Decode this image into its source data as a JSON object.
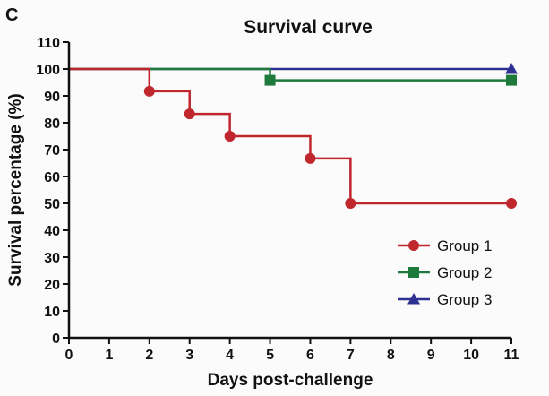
{
  "panel_label": "C",
  "chart_data": {
    "type": "line",
    "step": true,
    "title": "Survival curve",
    "xlabel": "Days post-challenge",
    "ylabel": "Survival percentage (%)",
    "xlim": [
      0,
      11
    ],
    "ylim": [
      0,
      110
    ],
    "x_ticks": [
      "0",
      "1",
      "2",
      "3",
      "4",
      "5",
      "6",
      "7",
      "8",
      "9",
      "10",
      "11"
    ],
    "y_ticks": [
      "0",
      "10",
      "20",
      "30",
      "40",
      "50",
      "60",
      "70",
      "80",
      "90",
      "100",
      "110"
    ],
    "grid": false,
    "legend_position": "bottom-right",
    "series": [
      {
        "name": "Group 1",
        "color": "#c0272d",
        "marker": "circle",
        "start": [
          0,
          100
        ],
        "points": [
          [
            2,
            91.7
          ],
          [
            3,
            83.3
          ],
          [
            4,
            75
          ],
          [
            6,
            66.7
          ],
          [
            7,
            50
          ],
          [
            11,
            50
          ]
        ]
      },
      {
        "name": "Group 2",
        "color": "#1e7a3a",
        "marker": "square",
        "start": [
          0,
          100
        ],
        "points": [
          [
            5,
            95.8
          ],
          [
            11,
            95.8
          ]
        ]
      },
      {
        "name": "Group 3",
        "color": "#2e3192",
        "marker": "triangle",
        "start": [
          0,
          100
        ],
        "points": [
          [
            11,
            100
          ]
        ]
      }
    ]
  }
}
